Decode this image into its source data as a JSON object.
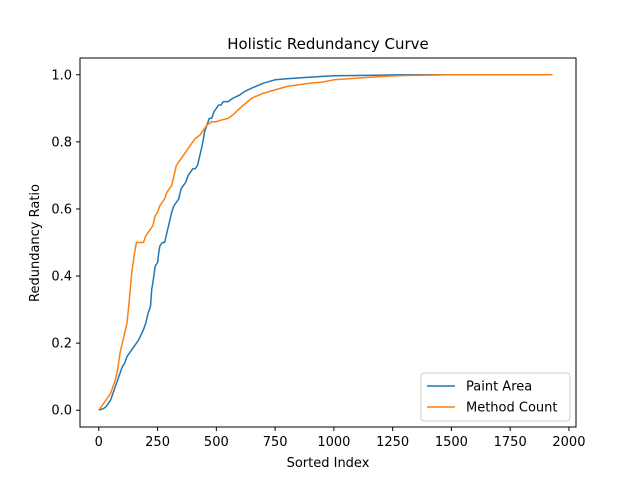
{
  "chart_data": {
    "type": "line",
    "title": "Holistic Redundancy Curve",
    "xlabel": "Sorted Index",
    "ylabel": "Redundancy Ratio",
    "xlim": [
      -80,
      2030
    ],
    "ylim": [
      -0.05,
      1.05
    ],
    "xticks": [
      0,
      250,
      500,
      750,
      1000,
      1250,
      1500,
      1750,
      2000
    ],
    "xtick_labels": [
      "0",
      "250",
      "500",
      "750",
      "1000",
      "1250",
      "1500",
      "1750",
      "2000"
    ],
    "yticks": [
      0.0,
      0.2,
      0.4,
      0.6,
      0.8,
      1.0
    ],
    "ytick_labels": [
      "0.0",
      "0.2",
      "0.4",
      "0.6",
      "0.8",
      "1.0"
    ],
    "grid": false,
    "legend_position": "bottom-right",
    "series": [
      {
        "name": "Paint Area",
        "color": "#1f77b4",
        "x": [
          0,
          20,
          30,
          40,
          50,
          60,
          70,
          80,
          90,
          100,
          110,
          120,
          130,
          150,
          170,
          190,
          200,
          210,
          220,
          225,
          230,
          240,
          250,
          255,
          260,
          270,
          280,
          290,
          300,
          310,
          320,
          330,
          340,
          350,
          360,
          370,
          380,
          390,
          400,
          410,
          420,
          430,
          440,
          450,
          460,
          470,
          480,
          490,
          500,
          510,
          520,
          530,
          550,
          570,
          600,
          620,
          650,
          700,
          750,
          800,
          900,
          1000,
          1100,
          1200,
          1300,
          1500,
          1700,
          1930
        ],
        "y": [
          0.0,
          0.005,
          0.01,
          0.02,
          0.03,
          0.05,
          0.07,
          0.09,
          0.11,
          0.13,
          0.14,
          0.16,
          0.17,
          0.19,
          0.21,
          0.24,
          0.26,
          0.29,
          0.31,
          0.36,
          0.38,
          0.43,
          0.44,
          0.47,
          0.49,
          0.5,
          0.5,
          0.53,
          0.56,
          0.59,
          0.61,
          0.62,
          0.63,
          0.66,
          0.67,
          0.68,
          0.7,
          0.71,
          0.72,
          0.72,
          0.73,
          0.76,
          0.79,
          0.83,
          0.85,
          0.87,
          0.87,
          0.89,
          0.9,
          0.91,
          0.91,
          0.92,
          0.92,
          0.93,
          0.94,
          0.95,
          0.96,
          0.975,
          0.985,
          0.988,
          0.993,
          0.997,
          0.998,
          0.999,
          1.0,
          1.0,
          1.0,
          1.0
        ]
      },
      {
        "name": "Method Count",
        "color": "#ff7f0e",
        "x": [
          0,
          10,
          20,
          30,
          40,
          50,
          60,
          70,
          80,
          90,
          100,
          110,
          120,
          130,
          140,
          150,
          160,
          170,
          180,
          190,
          200,
          210,
          220,
          230,
          240,
          250,
          260,
          270,
          280,
          290,
          300,
          310,
          320,
          330,
          340,
          350,
          360,
          370,
          380,
          390,
          400,
          410,
          420,
          430,
          440,
          450,
          460,
          470,
          480,
          490,
          500,
          520,
          550,
          570,
          600,
          650,
          700,
          750,
          800,
          900,
          950,
          1000,
          1100,
          1200,
          1300,
          1500,
          1700,
          1930
        ],
        "y": [
          0.0,
          0.01,
          0.02,
          0.03,
          0.04,
          0.05,
          0.07,
          0.09,
          0.12,
          0.17,
          0.2,
          0.23,
          0.26,
          0.33,
          0.41,
          0.46,
          0.5,
          0.5,
          0.5,
          0.5,
          0.52,
          0.53,
          0.54,
          0.55,
          0.58,
          0.59,
          0.61,
          0.62,
          0.63,
          0.65,
          0.66,
          0.67,
          0.7,
          0.73,
          0.74,
          0.75,
          0.76,
          0.77,
          0.78,
          0.79,
          0.8,
          0.81,
          0.815,
          0.82,
          0.83,
          0.84,
          0.85,
          0.855,
          0.86,
          0.86,
          0.86,
          0.865,
          0.87,
          0.88,
          0.9,
          0.93,
          0.945,
          0.955,
          0.965,
          0.975,
          0.978,
          0.985,
          0.99,
          0.995,
          0.998,
          1.0,
          1.0,
          1.0
        ]
      }
    ]
  }
}
